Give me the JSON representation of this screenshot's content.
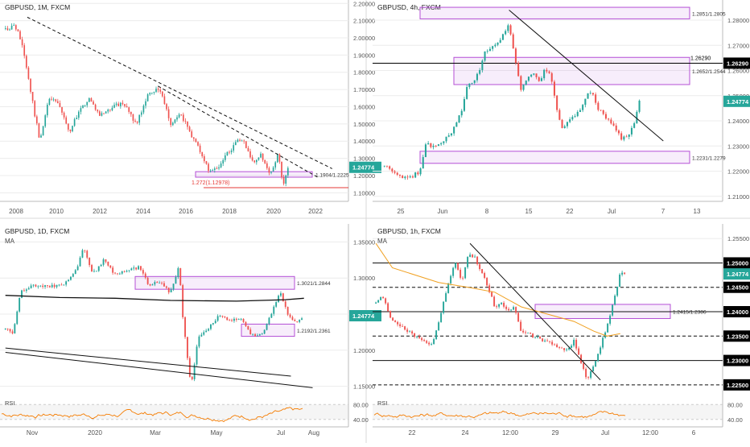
{
  "chart_data": [
    {
      "type": "candlestick",
      "title": "GBPUSD, 1M, FXCM",
      "x_ticks": [
        "2008",
        "2010",
        "2012",
        "2014",
        "2016",
        "2018",
        "2020",
        "2022"
      ],
      "y_ticks": [
        "2.20000",
        "2.10000",
        "2.00000",
        "1.90000",
        "1.80000",
        "1.70000",
        "1.60000",
        "1.50000",
        "1.40000",
        "1.30000",
        "1.20000",
        "1.10000"
      ],
      "ylim": [
        1.05,
        2.22
      ],
      "price_tag": "1.24774",
      "zones": [
        {
          "label": "1.1904/1.2225",
          "low": 1.1904,
          "high": 1.2225
        }
      ],
      "levels": [
        {
          "label": "1.272(1.12978)",
          "value": 1.12978,
          "color": "#e53935"
        }
      ],
      "trendlines": [
        {
          "style": "dashed",
          "from": [
            "2008-06",
            2.12
          ],
          "to": [
            "2022-06",
            1.24
          ]
        },
        {
          "style": "dashed",
          "from": [
            "2014-06",
            1.72
          ],
          "to": [
            "2021-10",
            1.19
          ]
        }
      ],
      "path": [
        [
          "2007-06",
          2.05
        ],
        [
          "2007-11",
          2.07
        ],
        [
          "2008-03",
          1.98
        ],
        [
          "2008-10",
          1.56
        ],
        [
          "2009-01",
          1.4
        ],
        [
          "2009-06",
          1.65
        ],
        [
          "2009-11",
          1.62
        ],
        [
          "2010-05",
          1.45
        ],
        [
          "2010-11",
          1.58
        ],
        [
          "2011-04",
          1.65
        ],
        [
          "2011-10",
          1.55
        ],
        [
          "2012-05",
          1.6
        ],
        [
          "2012-11",
          1.62
        ],
        [
          "2013-06",
          1.5
        ],
        [
          "2013-12",
          1.66
        ],
        [
          "2014-07",
          1.71
        ],
        [
          "2015-01",
          1.5
        ],
        [
          "2015-06",
          1.57
        ],
        [
          "2016-01",
          1.42
        ],
        [
          "2016-06",
          1.33
        ],
        [
          "2016-10",
          1.22
        ],
        [
          "2017-03",
          1.25
        ],
        [
          "2017-09",
          1.34
        ],
        [
          "2018-04",
          1.42
        ],
        [
          "2018-11",
          1.27
        ],
        [
          "2019-03",
          1.32
        ],
        [
          "2019-08",
          1.2
        ],
        [
          "2019-12",
          1.33
        ],
        [
          "2020-03",
          1.15
        ],
        [
          "2020-06",
          1.247
        ]
      ]
    },
    {
      "type": "candlestick",
      "title": "GBPUSD, 4h, FXCM",
      "x_ticks": [
        "25",
        "Jun",
        "8",
        "15",
        "22",
        "Jul",
        "7",
        "13"
      ],
      "y_ticks": [
        "1.28000",
        "1.27000",
        "1.26000",
        "1.25000",
        "1.24000",
        "1.23000",
        "1.22000",
        "1.21000"
      ],
      "ylim": [
        1.208,
        1.288
      ],
      "price_tags": [
        {
          "label": "1.26290",
          "value": 1.2629,
          "color": "#000000"
        },
        {
          "label": "1.24774",
          "value": 1.24774,
          "color": "#26a69a"
        }
      ],
      "zones": [
        {
          "label": "1.2851/1.2805",
          "low": 1.2805,
          "high": 1.2851
        },
        {
          "label": "1.2652/1.2544",
          "low": 1.2544,
          "high": 1.2652
        },
        {
          "label": "1.2231/1.2279",
          "low": 1.2231,
          "high": 1.2279
        }
      ],
      "levels": [
        {
          "label": "1.26290",
          "value": 1.2629,
          "color": "#000000"
        }
      ],
      "trendlines": [
        {
          "style": "solid",
          "from": [
            "Jun 10",
            1.284
          ],
          "to": [
            "Jul 6",
            1.232
          ]
        }
      ],
      "path": [
        [
          "May 20",
          1.222
        ],
        [
          "May 22",
          1.219
        ],
        [
          "May 24",
          1.217
        ],
        [
          "May 26",
          1.22
        ],
        [
          "May 27",
          1.232
        ],
        [
          "May 28",
          1.229
        ],
        [
          "May 31",
          1.234
        ],
        [
          "Jun 2",
          1.244
        ],
        [
          "Jun 3",
          1.254
        ],
        [
          "Jun 4",
          1.256
        ],
        [
          "Jun 5",
          1.26
        ],
        [
          "Jun 6",
          1.268
        ],
        [
          "Jun 8",
          1.27
        ],
        [
          "Jun 9",
          1.274
        ],
        [
          "Jun 10",
          1.278
        ],
        [
          "Jun 11",
          1.265
        ],
        [
          "Jun 12",
          1.252
        ],
        [
          "Jun 14",
          1.26
        ],
        [
          "Jun 15",
          1.255
        ],
        [
          "Jun 16",
          1.26
        ],
        [
          "Jun 17",
          1.258
        ],
        [
          "Jun 18",
          1.245
        ],
        [
          "Jun 19",
          1.237
        ],
        [
          "Jun 20",
          1.24
        ],
        [
          "Jun 22",
          1.244
        ],
        [
          "Jun 23",
          1.25
        ],
        [
          "Jun 24",
          1.252
        ],
        [
          "Jun 25",
          1.245
        ],
        [
          "Jun 26",
          1.242
        ],
        [
          "Jun 27",
          1.24
        ],
        [
          "Jun 29",
          1.233
        ],
        [
          "Jun 30",
          1.234
        ],
        [
          "Jul 1",
          1.238
        ],
        [
          "Jul 2",
          1.2477
        ]
      ]
    },
    {
      "type": "candlestick",
      "title": "GBPUSD, 1D, FXCM",
      "indicator": "MA",
      "x_ticks": [
        "Nov",
        "2020",
        "Mar",
        "May",
        "Jul",
        "Aug"
      ],
      "y_ticks": [
        "1.35000",
        "1.30000",
        "1.25000",
        "1.20000",
        "1.15000"
      ],
      "ylim": [
        1.135,
        1.375
      ],
      "price_tag": "1.24774",
      "zones": [
        {
          "label": "1.3021/1.2844",
          "low": 1.2844,
          "high": 1.3021
        },
        {
          "label": "1.2192/1.2361",
          "low": 1.2192,
          "high": 1.2361
        }
      ],
      "trendlines": [
        {
          "style": "solid",
          "from": [
            "Oct 1",
            1.203
          ],
          "to": [
            "Jun 20",
            1.164
          ]
        },
        {
          "style": "solid",
          "from": [
            "Oct 1",
            1.197
          ],
          "to": [
            "Jul 10",
            1.148
          ]
        }
      ],
      "path": [
        [
          "Oct 1",
          1.23
        ],
        [
          "Oct 8",
          1.225
        ],
        [
          "Oct 15",
          1.28
        ],
        [
          "Oct 25",
          1.29
        ],
        [
          "Nov 5",
          1.29
        ],
        [
          "Nov 15",
          1.288
        ],
        [
          "Nov 25",
          1.293
        ],
        [
          "Dec 5",
          1.31
        ],
        [
          "Dec 12",
          1.345
        ],
        [
          "Dec 20",
          1.305
        ],
        [
          "Dec 31",
          1.325
        ],
        [
          "Jan 10",
          1.305
        ],
        [
          "Jan 20",
          1.31
        ],
        [
          "Feb 1",
          1.315
        ],
        [
          "Feb 10",
          1.29
        ],
        [
          "Feb 20",
          1.295
        ],
        [
          "Mar 1",
          1.28
        ],
        [
          "Mar 9",
          1.318
        ],
        [
          "Mar 13",
          1.235
        ],
        [
          "Mar 20",
          1.15
        ],
        [
          "Mar 27",
          1.22
        ],
        [
          "Apr 5",
          1.23
        ],
        [
          "Apr 15",
          1.25
        ],
        [
          "Apr 25",
          1.24
        ],
        [
          "May 5",
          1.245
        ],
        [
          "May 15",
          1.22
        ],
        [
          "May 25",
          1.225
        ],
        [
          "Jun 2",
          1.25
        ],
        [
          "Jun 10",
          1.28
        ],
        [
          "Jun 18",
          1.245
        ],
        [
          "Jun 25",
          1.24
        ],
        [
          "Jul 2",
          1.2477
        ]
      ],
      "ma_path": [
        [
          "Oct 1",
          1.276
        ],
        [
          "Nov 20",
          1.273
        ],
        [
          "Jan 10",
          1.272
        ],
        [
          "Mar 1",
          1.269
        ],
        [
          "May 1",
          1.268
        ],
        [
          "Jun 15",
          1.27
        ],
        [
          "Jul 2",
          1.272
        ]
      ]
    },
    {
      "type": "candlestick",
      "title": "GBPUSD, 1h, FXCM",
      "indicator": "MA",
      "x_ticks": [
        "22",
        "24",
        "12:00",
        "29",
        "Jul",
        "12:00",
        "6"
      ],
      "y_ticks": [
        "1.25500",
        "1.25000",
        "1.24500",
        "1.24000",
        "1.23500",
        "1.23000",
        "1.22500"
      ],
      "ylim": [
        1.2225,
        1.258
      ],
      "price_tags": [
        {
          "label": "1.25000"
        },
        {
          "label": "1.24774"
        },
        {
          "label": "1.24500"
        },
        {
          "label": "1.24000"
        },
        {
          "label": "1.23500"
        },
        {
          "label": "1.23000"
        },
        {
          "label": "1.22500"
        }
      ],
      "zones": [
        {
          "label": "1.2415/1.2386",
          "low": 1.2386,
          "high": 1.2415
        }
      ],
      "levels": [
        {
          "value": 1.25,
          "style": "solid"
        },
        {
          "value": 1.245,
          "style": "dashed"
        },
        {
          "value": 1.24,
          "style": "solid"
        },
        {
          "value": 1.235,
          "style": "dashed"
        },
        {
          "value": 1.23,
          "style": "solid"
        },
        {
          "value": 1.225,
          "style": "dashed"
        }
      ],
      "trendlines": [
        {
          "style": "solid",
          "from": [
            "Jun 24 06:00",
            1.254
          ],
          "to": [
            "Jun 30 20:00",
            1.226
          ]
        }
      ],
      "path": [
        [
          "Jun 19 12:00",
          1.242
        ],
        [
          "Jun 19 20:00",
          1.243
        ],
        [
          "Jun 20 08:00",
          1.238
        ],
        [
          "Jun 22 08:00",
          1.233
        ],
        [
          "Jun 22 16:00",
          1.238
        ],
        [
          "Jun 23 04:00",
          1.246
        ],
        [
          "Jun 23 12:00",
          1.25
        ],
        [
          "Jun 23 20:00",
          1.246
        ],
        [
          "Jun 24 04:00",
          1.252
        ],
        [
          "Jun 24 12:00",
          1.251
        ],
        [
          "Jun 24 20:00",
          1.248
        ],
        [
          "Jun 25 04:00",
          1.245
        ],
        [
          "Jun 25 12:00",
          1.241
        ],
        [
          "Jun 25 20:00",
          1.242
        ],
        [
          "Jun 26 04:00",
          1.24
        ],
        [
          "Jun 26 12:00",
          1.241
        ],
        [
          "Jun 26 20:00",
          1.236
        ],
        [
          "Jun 29 04:00",
          1.232
        ],
        [
          "Jun 29 12:00",
          1.234
        ],
        [
          "Jun 29 20:00",
          1.23
        ],
        [
          "Jun 30 04:00",
          1.226
        ],
        [
          "Jun 30 12:00",
          1.229
        ],
        [
          "Jun 30 20:00",
          1.233
        ],
        [
          "Jul 1 04:00",
          1.237
        ],
        [
          "Jul 1 12:00",
          1.242
        ],
        [
          "Jul 1 20:00",
          1.248
        ],
        [
          "Jul 2 04:00",
          1.2477
        ]
      ],
      "ma_path": [
        [
          "Jun 19 12:00",
          1.254
        ],
        [
          "Jun 20 08:00",
          1.249
        ],
        [
          "Jun 22 16:00",
          1.246
        ],
        [
          "Jun 24 04:00",
          1.245
        ],
        [
          "Jun 25 12:00",
          1.244
        ],
        [
          "Jun 26 20:00",
          1.241
        ],
        [
          "Jun 29 12:00",
          1.238
        ],
        [
          "Jun 30 12:00",
          1.236
        ],
        [
          "Jul 1 04:00",
          1.235
        ],
        [
          "Jul 1 20:00",
          1.2355
        ]
      ]
    }
  ],
  "rsi_panels": [
    {
      "label": "RSI",
      "ticks": [
        "80.00",
        "40.00"
      ]
    },
    {
      "label": "RSI",
      "ticks": [
        "80.00",
        "40.00"
      ]
    }
  ],
  "colors": {
    "up": "#26a69a",
    "down": "#ef5350",
    "zone_border": "#b44fd6",
    "zone_fill": "rgba(180,79,214,0.10)",
    "rsi_line": "#f57c00",
    "ma_line": "#f0a020",
    "grid": "#ececec"
  }
}
